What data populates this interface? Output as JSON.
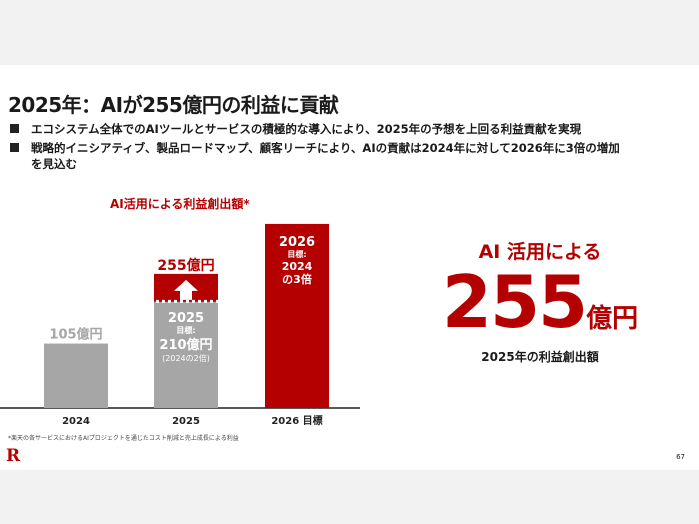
{
  "slide": {
    "title": "2025年：AIが255億円の利益に貢献",
    "bullets": [
      "エコシステム全体でのAIツールとサービスの積極的な導入により、2025年の予想を上回る利益貢献を実現",
      "戦略的イニシアティブ、製品ロードマップ、顧客リーチにより、AIの貢献は2024年に対して2026年に3倍の増加を見込む"
    ],
    "highlight": {
      "line1": "AI 活用による",
      "number": "255",
      "unit": "億円",
      "line3": "2025年の利益創出額"
    },
    "footnote": "*楽天の各サービスにおけるAIプロジェクトを通じたコスト削減と売上成長による利益",
    "logo": "R",
    "page_number": "67"
  },
  "chart_data": {
    "type": "bar",
    "title": "AI活用による利益創出額*",
    "categories": [
      "2024",
      "2025",
      "2026 目標"
    ],
    "values": [
      105,
      255,
      315
    ],
    "targets": [
      null,
      210,
      315
    ],
    "bar_labels": {
      "b2024": "105億円",
      "b2025_actual": "255億円",
      "b2025_year": "2025",
      "b2025_target_label": "目標:",
      "b2025_target": "210億円",
      "b2025_note": "(2024の2倍)",
      "b2026_year": "2026",
      "b2026_target_label": "目標:",
      "b2026_l1": "2024",
      "b2026_l2": "の3倍"
    },
    "colors": {
      "gray": "#a6a6a6",
      "red": "#b40000"
    },
    "ylim": [
      0,
      320
    ]
  }
}
